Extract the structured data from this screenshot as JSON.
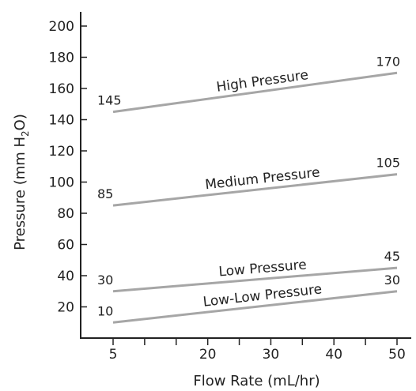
{
  "chart_data": {
    "type": "line",
    "xlabel": "Flow Rate (mL/hr)",
    "ylabel": {
      "prefix": "Pressure (mm H",
      "subscript": "2",
      "suffix": "O)"
    },
    "xlim": [
      5,
      50
    ],
    "ylim": [
      0,
      200
    ],
    "x_ticks": [
      5,
      20,
      30,
      40,
      50
    ],
    "x_minor_ticks": [
      10,
      15,
      25,
      35,
      45
    ],
    "y_ticks": [
      20,
      40,
      60,
      80,
      100,
      120,
      140,
      160,
      180,
      200
    ],
    "grid": false,
    "colors": {
      "line": "#a6a6a6",
      "axis": "#222222",
      "text": "#222222"
    },
    "series": [
      {
        "name": "High Pressure",
        "x": [
          5,
          50
        ],
        "values": [
          145,
          170
        ],
        "start_label": "145",
        "end_label": "170"
      },
      {
        "name": "Medium Pressure",
        "x": [
          5,
          50
        ],
        "values": [
          85,
          105
        ],
        "start_label": "85",
        "end_label": "105"
      },
      {
        "name": "Low Pressure",
        "x": [
          5,
          50
        ],
        "values": [
          30,
          45
        ],
        "start_label": "30",
        "end_label": "45"
      },
      {
        "name": "Low-Low Pressure",
        "x": [
          5,
          50
        ],
        "values": [
          10,
          30
        ],
        "start_label": "10",
        "end_label": "30"
      }
    ]
  }
}
